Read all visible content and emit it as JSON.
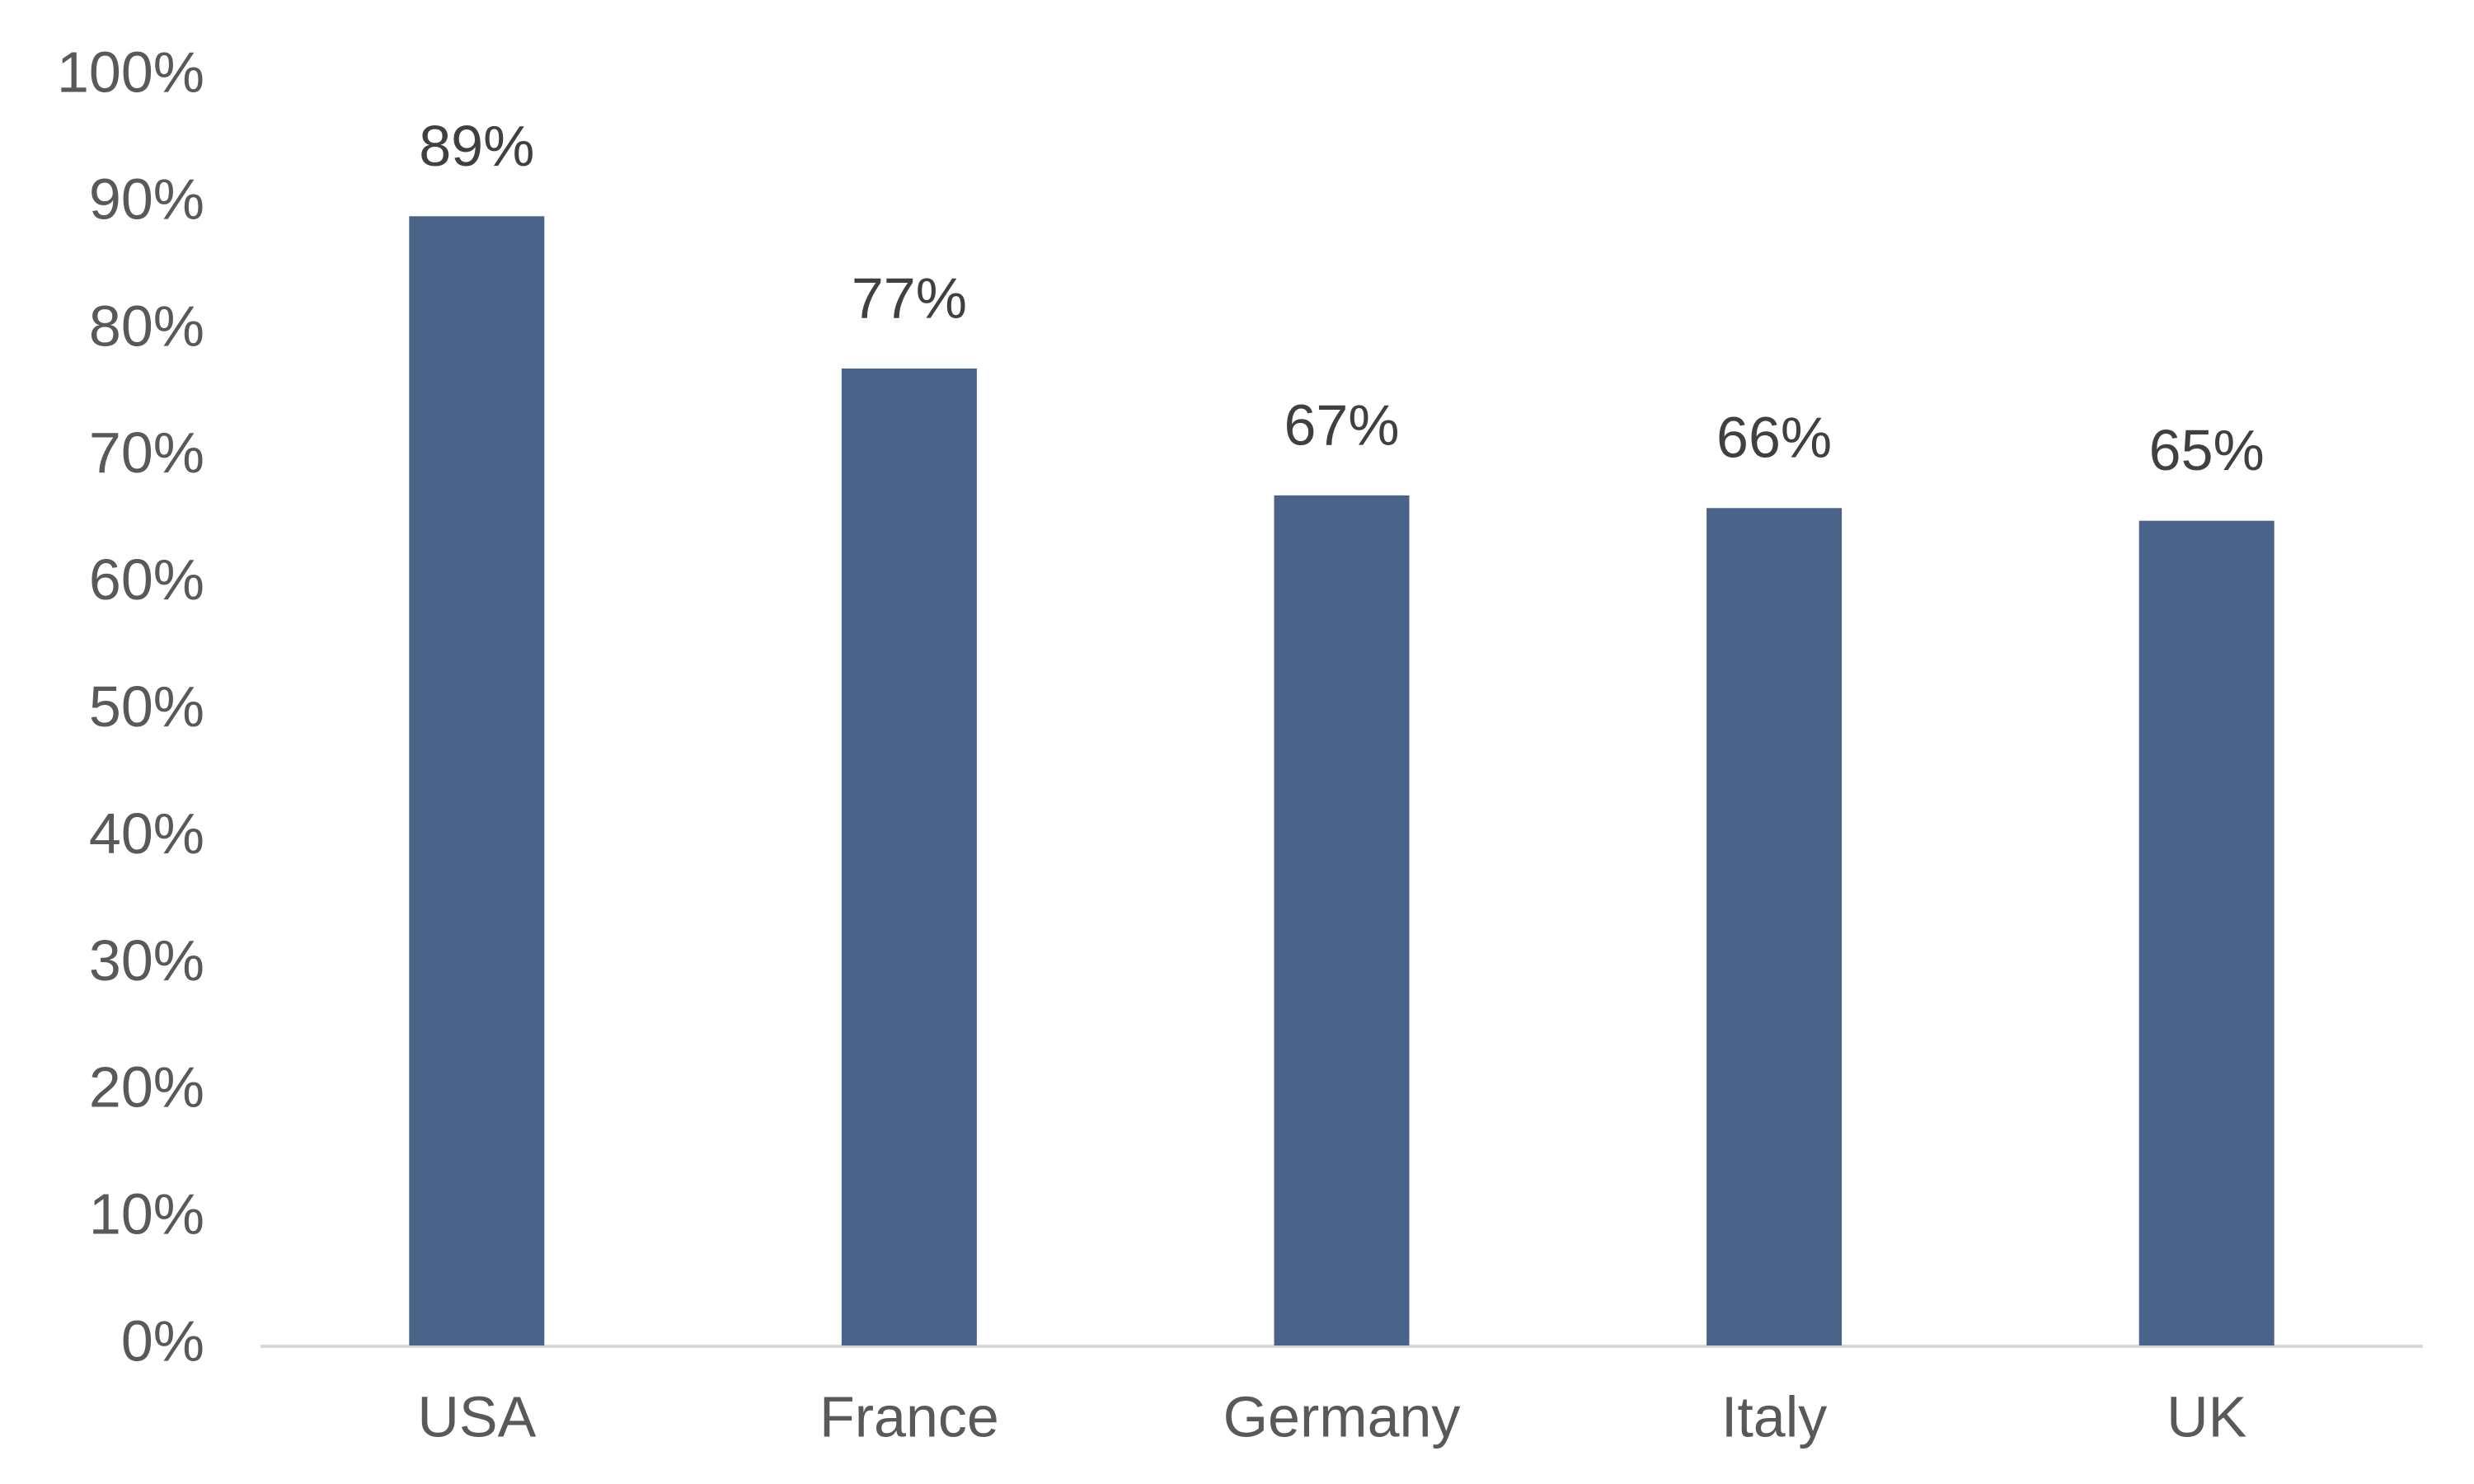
{
  "chart_data": {
    "type": "bar",
    "categories": [
      "USA",
      "France",
      "Germany",
      "Italy",
      "UK"
    ],
    "values": [
      89,
      77,
      67,
      66,
      65
    ],
    "value_labels": [
      "89%",
      "77%",
      "67%",
      "66%",
      "65%"
    ],
    "color": "#4a6489",
    "ylim": [
      0,
      100
    ],
    "yticks": [
      {
        "value": 0,
        "label": "0%"
      },
      {
        "value": 10,
        "label": "10%"
      },
      {
        "value": 20,
        "label": "20%"
      },
      {
        "value": 30,
        "label": "30%"
      },
      {
        "value": 40,
        "label": "40%"
      },
      {
        "value": 50,
        "label": "50%"
      },
      {
        "value": 60,
        "label": "60%"
      },
      {
        "value": 70,
        "label": "70%"
      },
      {
        "value": 80,
        "label": "80%"
      },
      {
        "value": 90,
        "label": "90%"
      },
      {
        "value": 100,
        "label": "100%"
      }
    ],
    "grid": false
  }
}
